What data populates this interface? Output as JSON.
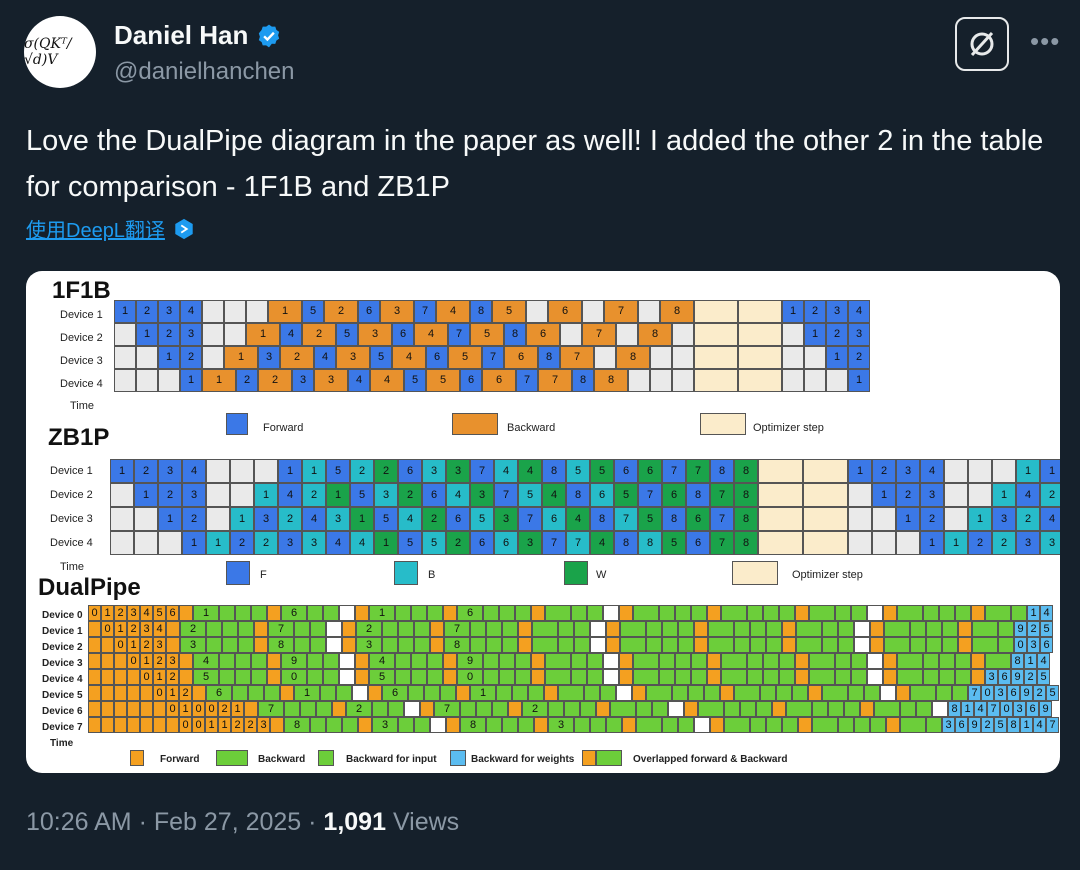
{
  "author": {
    "name": "Daniel Han",
    "handle": "@danielhanchen",
    "avatar_text": "σ(QKᵀ/√d)V"
  },
  "tweet_text": "Love the DualPipe diagram in the paper as well! I added the other 2 in the table for comparison - 1F1B and ZB1P",
  "translate_label": "使用DeepL翻译",
  "footer": {
    "time": "10:26 AM",
    "date": "Feb 27, 2025",
    "views_count": "1,091",
    "views_label": "Views"
  },
  "colors": {
    "forward_1f1b": "#3b78e7",
    "backward_1f1b": "#e8912d",
    "optimizer": "#fbeccb",
    "idle": "#eaeaea",
    "zb_b": "#27bcc9",
    "zb_w": "#1aa34a",
    "dp_forward": "#f4a020",
    "dp_backward": "#6cce3a",
    "dp_weights": "#5bbcf0"
  },
  "diagram": {
    "onef1b": {
      "title": "1F1B",
      "devices": [
        "Device 1",
        "Device 2",
        "Device 3",
        "Device 4"
      ],
      "time_label": "Time",
      "legend": [
        "Forward",
        "Backward",
        "Optimizer step"
      ]
    },
    "zb1p": {
      "title": "ZB1P",
      "devices": [
        "Device 1",
        "Device 2",
        "Device 3",
        "Device 4"
      ],
      "time_label": "Time",
      "legend": [
        "F",
        "B",
        "W",
        "Optimizer step"
      ]
    },
    "dualpipe": {
      "title": "DualPipe",
      "devices": [
        "Device 0",
        "Device 1",
        "Device 2",
        "Device 3",
        "Device 4",
        "Device 5",
        "Device 6",
        "Device 7"
      ],
      "time_label": "Time",
      "legend": [
        "Forward",
        "Backward",
        "Backward for input",
        "Backward for weights",
        "Overlapped forward & Backward"
      ]
    }
  }
}
